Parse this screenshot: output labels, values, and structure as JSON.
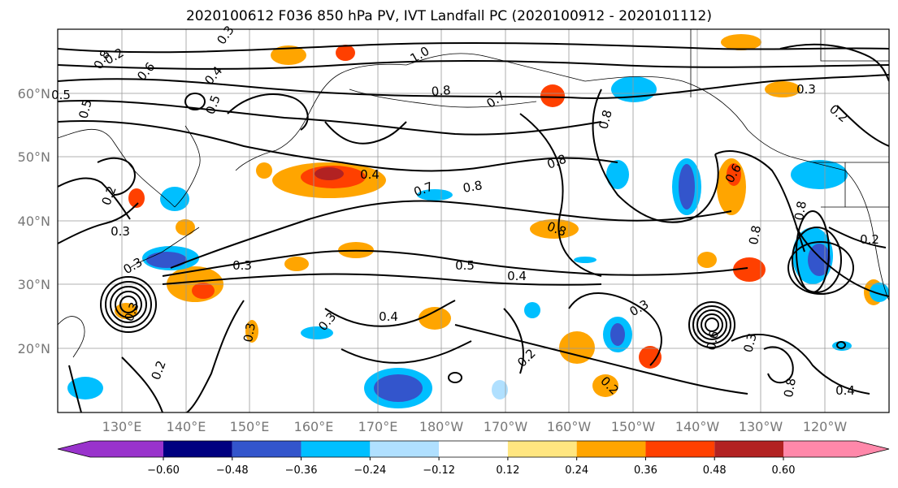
{
  "title": "2020100612 F036 850 hPa PV, IVT Landfall PC (2020100912 - 2020101112)",
  "lat_labels": [
    "60°N",
    "50°N",
    "40°N",
    "30°N",
    "20°N"
  ],
  "lon_labels": [
    "130°E",
    "140°E",
    "150°E",
    "160°E",
    "170°E",
    "180°W",
    "170°W",
    "160°W",
    "150°W",
    "140°W",
    "130°W",
    "120°W"
  ],
  "colorbar": {
    "ticks": [
      "−0.60",
      "−0.48",
      "−0.36",
      "−0.24",
      "−0.12",
      "0.12",
      "0.24",
      "0.36",
      "0.48",
      "0.60"
    ],
    "colors": [
      "#9933cc",
      "#000080",
      "#3355cc",
      "#00bfff",
      "#b0e0ff",
      "#ffffff",
      "#ffe680",
      "#ffa500",
      "#ff4000",
      "#b22222",
      "#ff88aa"
    ]
  },
  "contour_labels": [
    "0.8",
    "0.3",
    "0.6",
    "1.0",
    "0.4",
    "0.5",
    "0.8",
    "0.7",
    "0.8",
    "0.5",
    "0.3",
    "0.2",
    "0.5",
    "0.2",
    "0.3",
    "0.3",
    "0.4",
    "0.7",
    "0.8",
    "0.8",
    "0.8",
    "0.3",
    "0.5",
    "0.4",
    "0.4",
    "0.3",
    "0.3",
    "0.2",
    "0.3",
    "0.2",
    "0.2",
    "0.6",
    "0.8",
    "0.8",
    "0.2",
    "0.3",
    "0.4",
    "0.2",
    "0.3",
    "0.8",
    "0.6"
  ]
}
